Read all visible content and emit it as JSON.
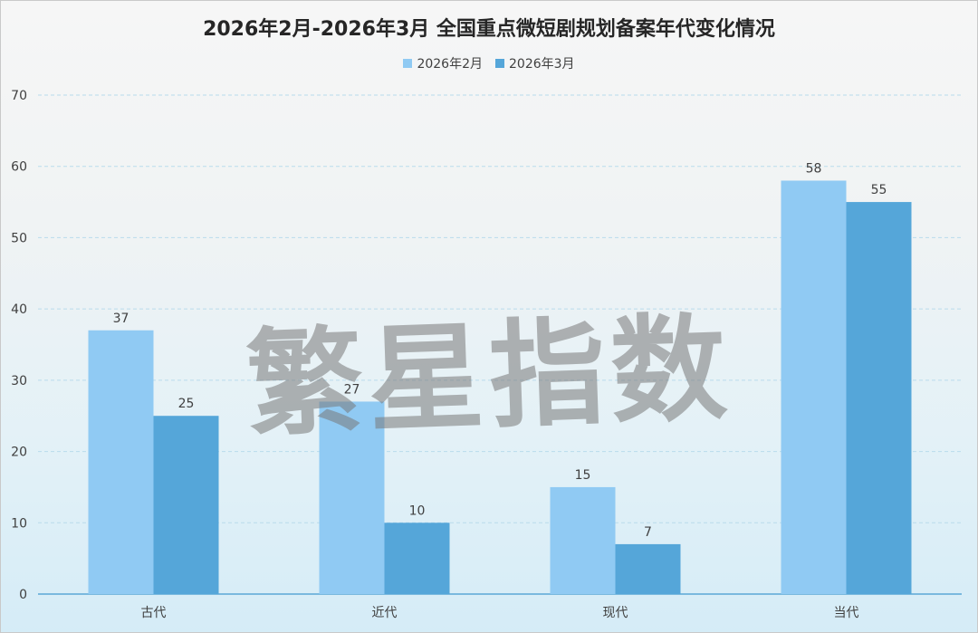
{
  "chart_data": {
    "type": "bar",
    "title": "2026年2月-2026年3月 全国重点微短剧规划备案年代变化情况",
    "categories": [
      "古代",
      "近代",
      "现代",
      "当代"
    ],
    "series": [
      {
        "name": "2026年2月",
        "values": [
          37,
          27,
          15,
          58
        ],
        "color": "#90caf3"
      },
      {
        "name": "2026年3月",
        "values": [
          25,
          10,
          7,
          55
        ],
        "color": "#55a6d9"
      }
    ],
    "ylim": [
      0,
      70
    ],
    "yticks": [
      0,
      10,
      20,
      30,
      40,
      50,
      60,
      70
    ],
    "grid": true,
    "legend_position": "top-center",
    "xlabel": "",
    "ylabel": ""
  },
  "watermark": "繁星指数"
}
